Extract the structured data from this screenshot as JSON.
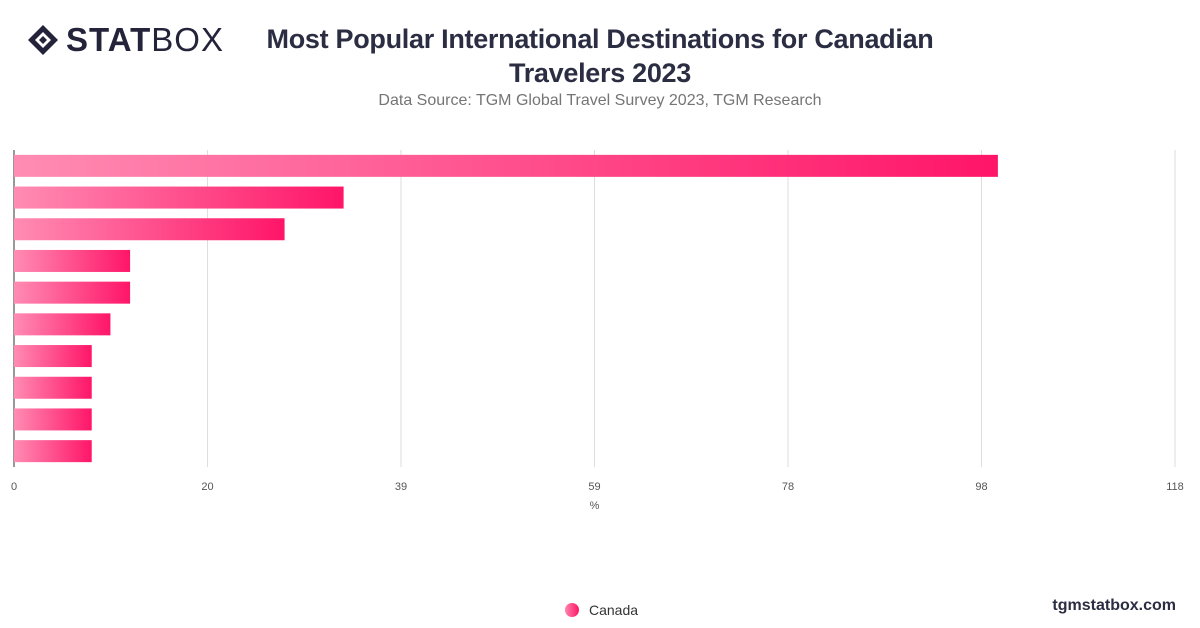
{
  "logo": {
    "bold": "STAT",
    "regular": "BOX"
  },
  "title": "Most Popular International Destinations for Canadian Travelers 2023",
  "subtitle": "Data Source: TGM Global Travel Survey 2023, TGM Research",
  "footer": "tgmstatbox.com",
  "colors": {
    "bar_start": "#ff8cb3",
    "bar_end": "#ff1568",
    "grid": "#dddddd",
    "axis": "#333333"
  },
  "chart_data": {
    "type": "bar",
    "orientation": "horizontal",
    "xlabel": "%",
    "xlim": [
      0,
      118
    ],
    "ticks": [
      "0",
      "20",
      "39",
      "59",
      "78",
      "98",
      "118"
    ],
    "tick_values": [
      0,
      19.67,
      39.33,
      59,
      78.67,
      98.33,
      118
    ],
    "series": [
      {
        "name": "Canada",
        "values": [
          100,
          33.5,
          27.5,
          11.8,
          11.8,
          9.8,
          7.9,
          7.9,
          7.9,
          7.9
        ]
      }
    ],
    "grid": true,
    "legend_position": "bottom-center"
  }
}
